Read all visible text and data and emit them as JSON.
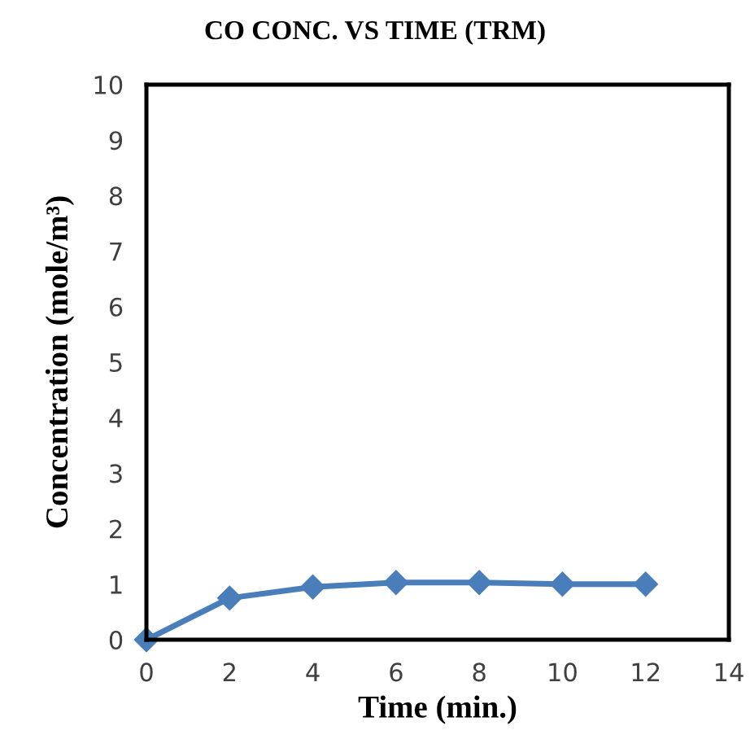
{
  "chart_data": {
    "type": "line",
    "title": "CO CONC. VS TIME (TRM)",
    "xlabel": "Time (min.)",
    "ylabel": "Concentration (mole/m³)",
    "x": [
      0,
      2,
      4,
      6,
      8,
      10,
      12
    ],
    "series": [
      {
        "color": "#4a7ebb",
        "values": [
          0,
          0.75,
          0.95,
          1.03,
          1.03,
          1.0,
          1.0
        ]
      }
    ],
    "xlim": [
      0,
      14
    ],
    "xticks": [
      0,
      2,
      4,
      6,
      8,
      10,
      12,
      14
    ],
    "ylim": [
      0,
      10
    ],
    "yticks": [
      0,
      1,
      2,
      3,
      4,
      5,
      6,
      7,
      8,
      9,
      10
    ],
    "grid": false,
    "marker": "diamond",
    "line_style": "solid"
  }
}
